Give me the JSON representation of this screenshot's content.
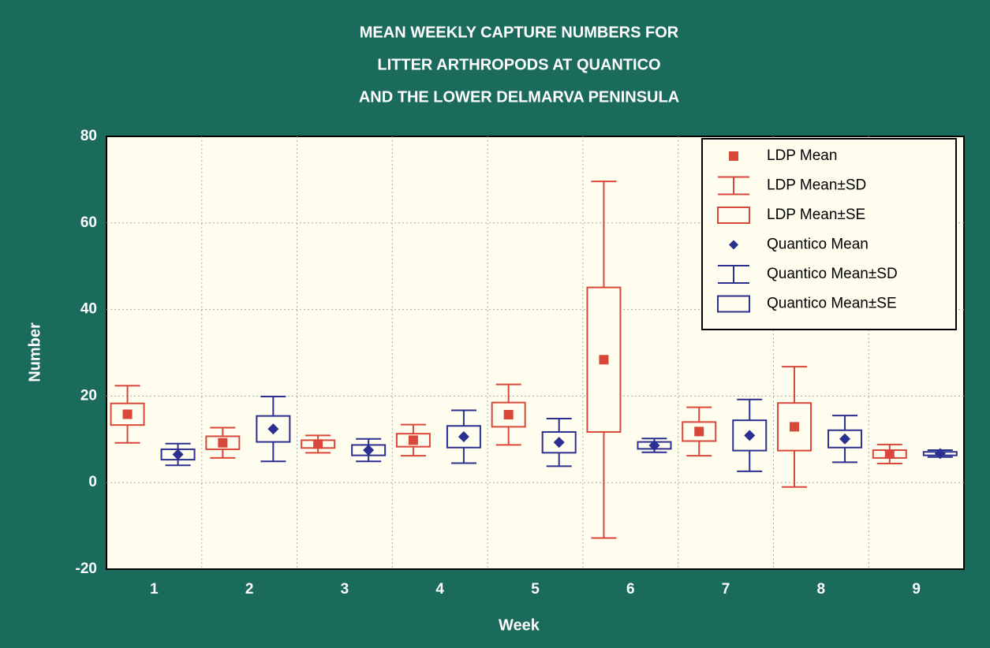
{
  "chart_data": {
    "type": "box",
    "title": [
      "MEAN WEEKLY CAPTURE NUMBERS FOR",
      "LITTER ARTHROPODS AT QUANTICO",
      "AND THE LOWER DELMARVA PENINSULA"
    ],
    "x_label": "Week",
    "y_label": "Number",
    "categories": [
      "1",
      "2",
      "3",
      "4",
      "5",
      "6",
      "7",
      "8",
      "9"
    ],
    "ylim": [
      -20,
      80
    ],
    "yticks": [
      -20,
      0,
      20,
      40,
      60,
      80
    ],
    "grid": true,
    "legend": "upper right",
    "series": [
      {
        "labels": {
          "mean": "LDP Mean",
          "sd": "LDP Mean±SD",
          "se": "LDP Mean±SE"
        },
        "color": "#d9473a",
        "mean": [
          15.8,
          9.2,
          8.9,
          9.8,
          15.7,
          28.4,
          11.8,
          12.9,
          6.6
        ],
        "se": [
          2.5,
          1.5,
          0.9,
          1.5,
          2.8,
          16.7,
          2.2,
          5.5,
          0.9
        ],
        "sd": [
          6.6,
          3.5,
          2.0,
          3.6,
          7.0,
          41.2,
          5.6,
          13.9,
          2.2
        ]
      },
      {
        "labels": {
          "mean": "Quantico Mean",
          "sd": "Quantico Mean±SD",
          "se": "Quantico Mean±SE"
        },
        "color": "#2b2f8f",
        "mean": [
          6.5,
          12.4,
          7.5,
          10.6,
          9.3,
          8.6,
          10.9,
          10.1,
          6.7
        ],
        "se": [
          1.2,
          3.0,
          1.2,
          2.5,
          2.4,
          0.8,
          3.5,
          2.0,
          0.4
        ],
        "sd": [
          2.5,
          7.5,
          2.6,
          6.1,
          5.5,
          1.6,
          8.3,
          5.4,
          0.8
        ]
      }
    ]
  }
}
